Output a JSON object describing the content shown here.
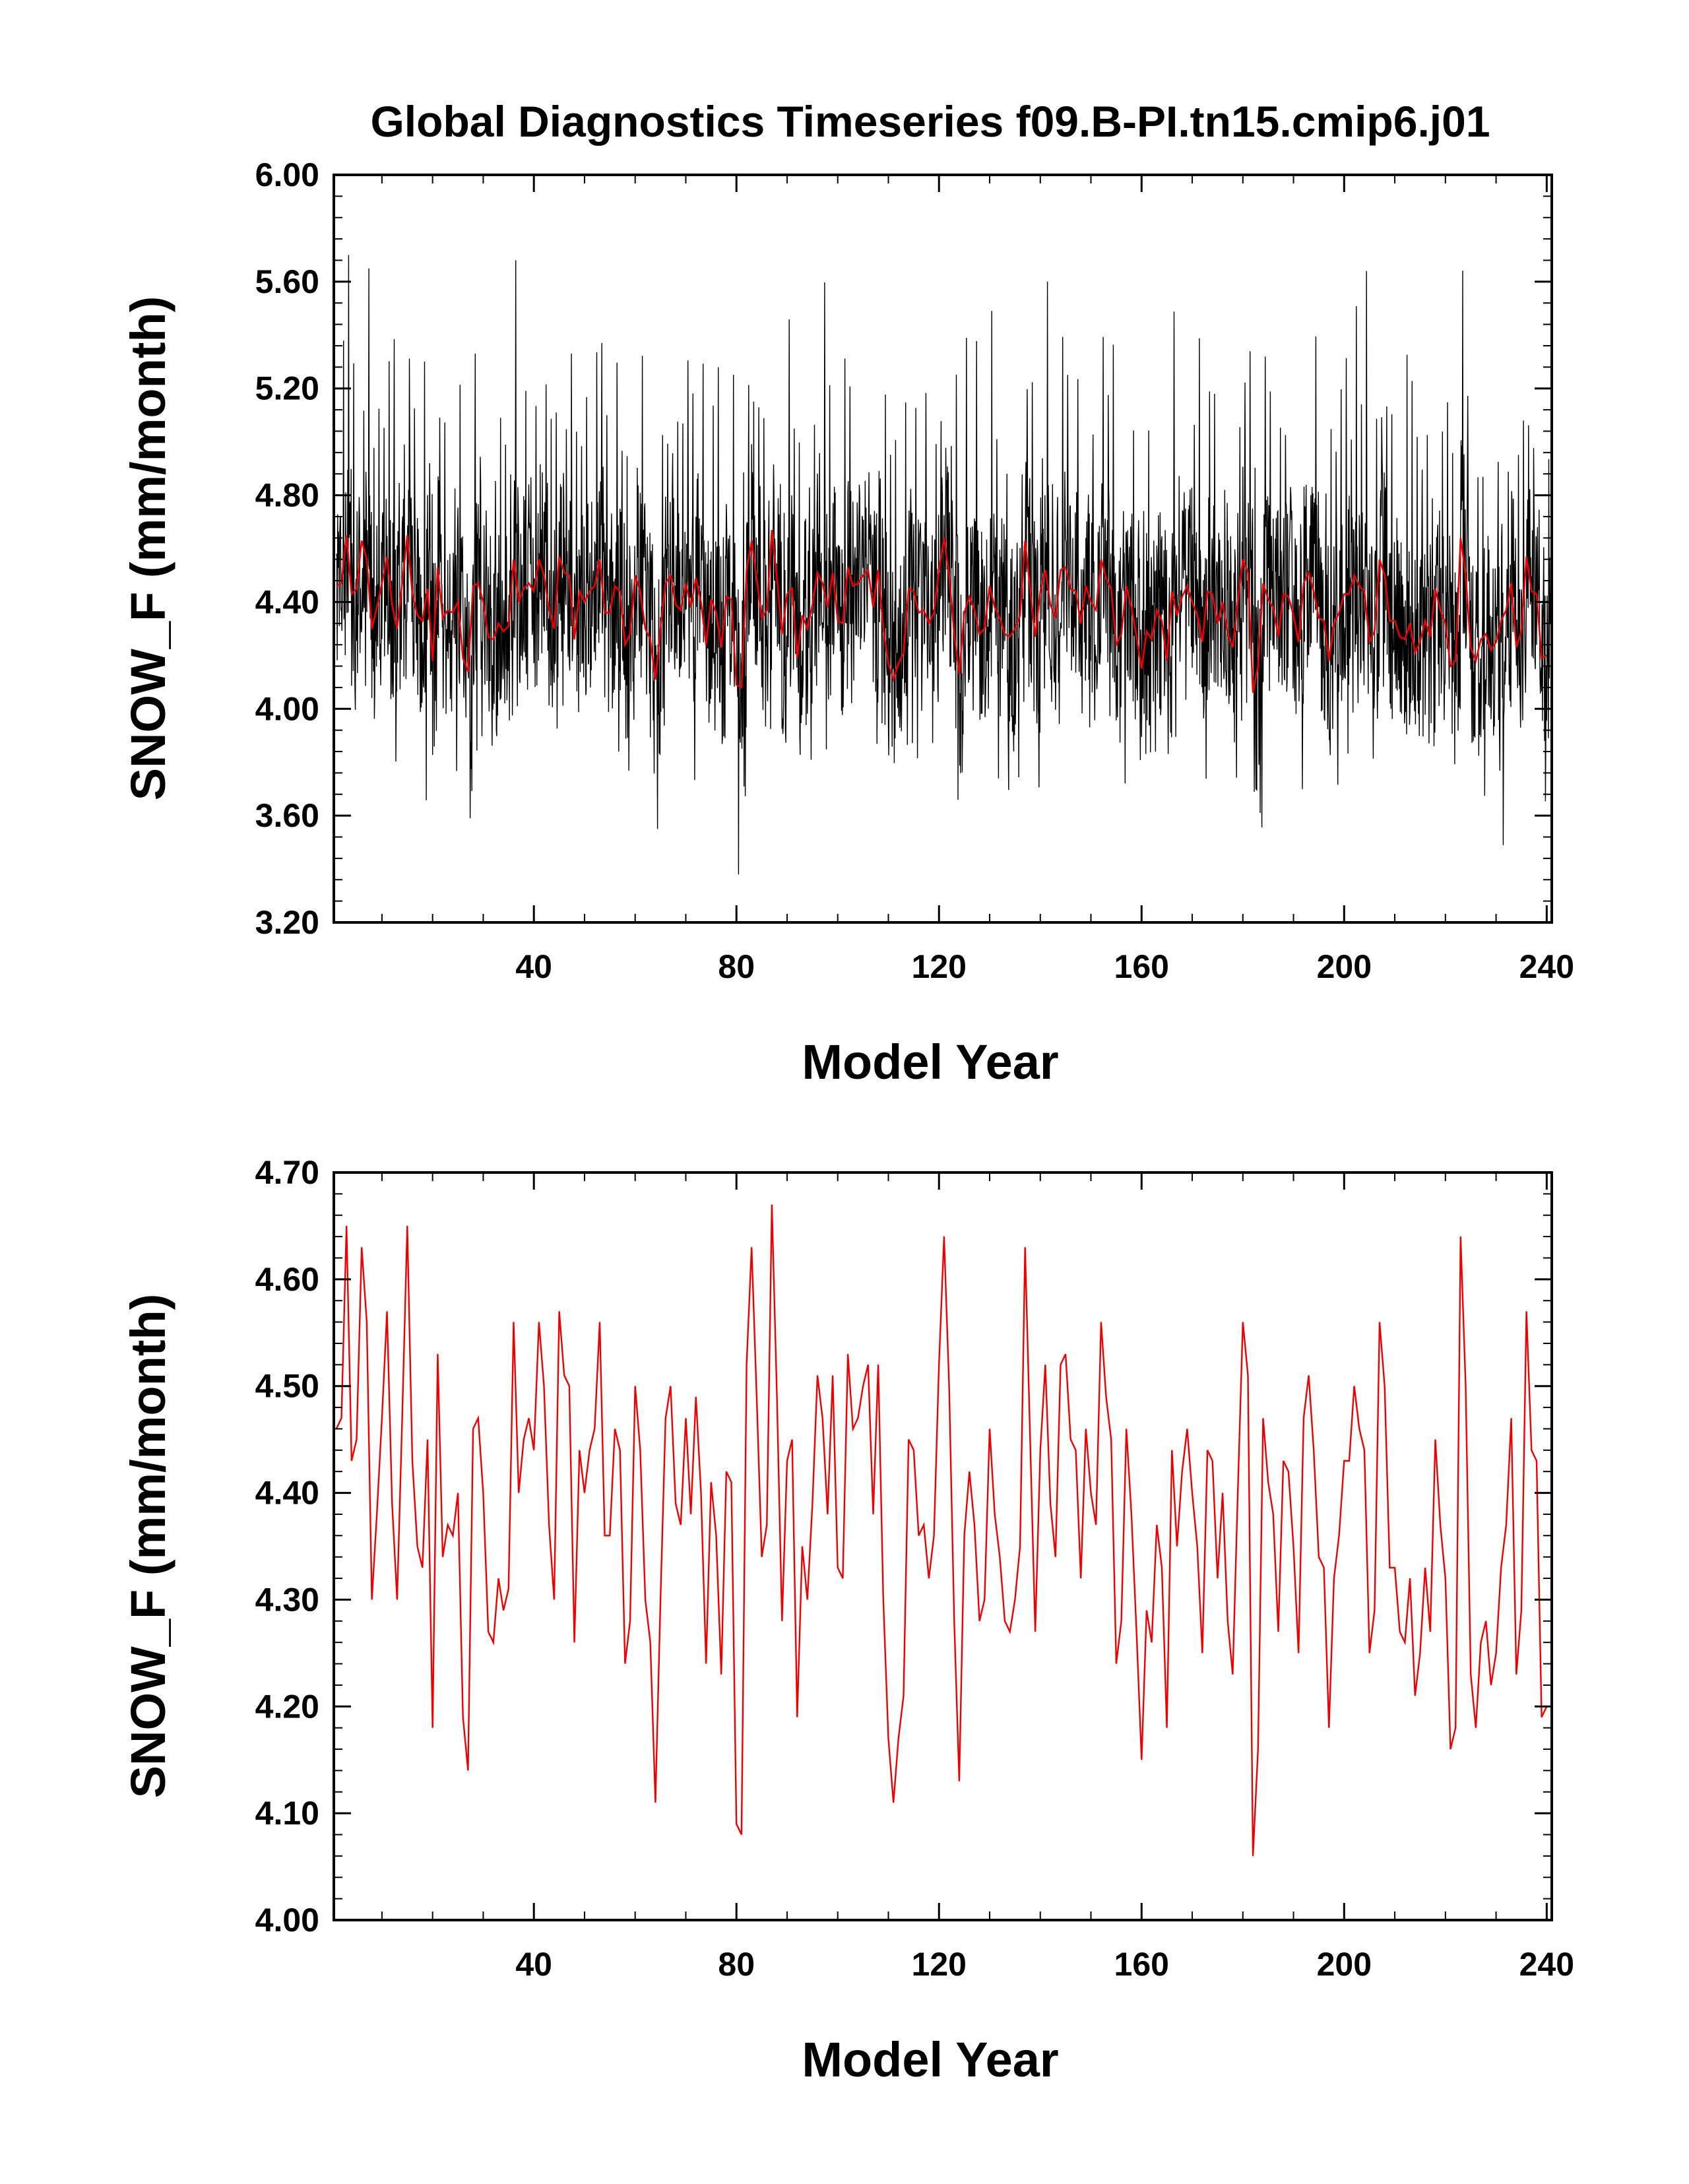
{
  "title": "Global Diagnostics Timeseries f09.B-PI.tn15.cmip6.j01",
  "colors": {
    "monthly": "#000000",
    "annual": "#ee0000"
  },
  "chart_data": [
    {
      "type": "line",
      "xlabel": "Model Year",
      "ylabel": "SNOW_F (mm/month)",
      "xlim": [
        0.5,
        241
      ],
      "ylim": [
        3.2,
        6.0
      ],
      "xticks": [
        40,
        80,
        120,
        160,
        200,
        240
      ],
      "xtick_labels": [
        "40",
        "80",
        "120",
        "160",
        "200",
        "240"
      ],
      "yticks": [
        3.2,
        3.6,
        4.0,
        4.4,
        4.8,
        5.2,
        5.6,
        6.0
      ],
      "ytick_labels": [
        "3.20",
        "3.60",
        "4.00",
        "4.40",
        "4.80",
        "5.20",
        "5.60",
        "6.00"
      ],
      "grid": false,
      "series": [
        {
          "kind": "monthly",
          "note": "monthly values (12 per model year), oscillating ~3.4-5.7 around the annual mean; notable peaks 5.70 (yr 3), 5.68 (yr 36), 5.64 (yr 204); minimum 3.38 (yr 80)"
        },
        {
          "kind": "annual",
          "values_ref": "annual_means"
        }
      ]
    },
    {
      "type": "line",
      "xlabel": "Model Year",
      "ylabel": "SNOW_F (mm/month)",
      "xlim": [
        0.5,
        241
      ],
      "ylim": [
        4.0,
        4.7
      ],
      "xticks": [
        40,
        80,
        120,
        160,
        200,
        240
      ],
      "xtick_labels": [
        "40",
        "80",
        "120",
        "160",
        "200",
        "240"
      ],
      "yticks": [
        4.0,
        4.1,
        4.2,
        4.3,
        4.4,
        4.5,
        4.6,
        4.7
      ],
      "ytick_labels": [
        "4.00",
        "4.10",
        "4.20",
        "4.30",
        "4.40",
        "4.50",
        "4.60",
        "4.70"
      ],
      "grid": false,
      "series": [
        {
          "kind": "annual",
          "values_ref": "annual_means"
        }
      ]
    }
  ],
  "annual_means": [
    4.46,
    4.47,
    4.65,
    4.43,
    4.45,
    4.63,
    4.56,
    4.3,
    4.38,
    4.47,
    4.57,
    4.39,
    4.3,
    4.47,
    4.65,
    4.43,
    4.35,
    4.33,
    4.45,
    4.18,
    4.53,
    4.34,
    4.37,
    4.36,
    4.4,
    4.19,
    4.14,
    4.46,
    4.47,
    4.4,
    4.27,
    4.26,
    4.32,
    4.29,
    4.31,
    4.56,
    4.4,
    4.45,
    4.47,
    4.44,
    4.56,
    4.5,
    4.37,
    4.3,
    4.57,
    4.51,
    4.5,
    4.26,
    4.44,
    4.4,
    4.44,
    4.46,
    4.56,
    4.36,
    4.36,
    4.46,
    4.44,
    4.24,
    4.28,
    4.5,
    4.44,
    4.3,
    4.26,
    4.11,
    4.3,
    4.47,
    4.5,
    4.39,
    4.37,
    4.47,
    4.38,
    4.49,
    4.4,
    4.24,
    4.41,
    4.36,
    4.23,
    4.42,
    4.41,
    4.09,
    4.08,
    4.52,
    4.63,
    4.49,
    4.34,
    4.37,
    4.67,
    4.49,
    4.28,
    4.43,
    4.45,
    4.19,
    4.35,
    4.3,
    4.39,
    4.51,
    4.47,
    4.38,
    4.51,
    4.33,
    4.32,
    4.53,
    4.46,
    4.47,
    4.5,
    4.52,
    4.38,
    4.52,
    4.3,
    4.17,
    4.11,
    4.17,
    4.21,
    4.45,
    4.44,
    4.36,
    4.37,
    4.32,
    4.36,
    4.52,
    4.64,
    4.5,
    4.28,
    4.13,
    4.36,
    4.42,
    4.37,
    4.28,
    4.3,
    4.46,
    4.38,
    4.34,
    4.28,
    4.27,
    4.3,
    4.35,
    4.63,
    4.45,
    4.27,
    4.44,
    4.52,
    4.39,
    4.34,
    4.52,
    4.53,
    4.45,
    4.44,
    4.32,
    4.46,
    4.4,
    4.37,
    4.56,
    4.49,
    4.45,
    4.24,
    4.28,
    4.46,
    4.38,
    4.27,
    4.15,
    4.29,
    4.26,
    4.37,
    4.33,
    4.18,
    4.44,
    4.35,
    4.42,
    4.46,
    4.4,
    4.35,
    4.25,
    4.44,
    4.43,
    4.32,
    4.4,
    4.28,
    4.23,
    4.4,
    4.56,
    4.51,
    4.06,
    4.16,
    4.47,
    4.41,
    4.38,
    4.27,
    4.43,
    4.42,
    4.35,
    4.25,
    4.47,
    4.51,
    4.44,
    4.34,
    4.33,
    4.18,
    4.32,
    4.36,
    4.43,
    4.43,
    4.5,
    4.46,
    4.44,
    4.25,
    4.29,
    4.56,
    4.5,
    4.33,
    4.33,
    4.27,
    4.26,
    4.32,
    4.21,
    4.25,
    4.33,
    4.27,
    4.45,
    4.37,
    4.32,
    4.16,
    4.18,
    4.64,
    4.5,
    4.23,
    4.18,
    4.26,
    4.28,
    4.22,
    4.25,
    4.33,
    4.37,
    4.47,
    4.23,
    4.29,
    4.57,
    4.44,
    4.43,
    4.19,
    4.2
  ]
}
